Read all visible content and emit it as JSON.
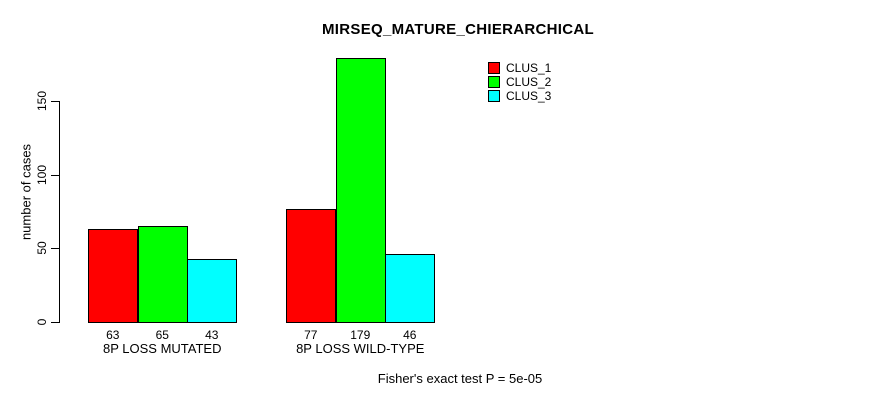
{
  "title": "MIRSEQ_MATURE_CHIERARCHICAL",
  "footer": "Fisher's exact test P = 5e-05",
  "y_axis": {
    "label": "number of cases",
    "ticks": [
      0,
      50,
      100,
      150
    ]
  },
  "legend": {
    "items": [
      {
        "label": "CLUS_1",
        "color": "#ff0000"
      },
      {
        "label": "CLUS_2",
        "color": "#00ff00"
      },
      {
        "label": "CLUS_3",
        "color": "#00ffff"
      }
    ]
  },
  "chart_data": {
    "type": "bar",
    "title": "MIRSEQ_MATURE_CHIERARCHICAL",
    "xlabel": "",
    "ylabel": "number of cases",
    "ylim": [
      0,
      150
    ],
    "axis_ticks": [
      0,
      50,
      100,
      150
    ],
    "categories": [
      "8P LOSS MUTATED",
      "8P LOSS WILD-TYPE"
    ],
    "series": [
      {
        "name": "CLUS_1",
        "color": "#ff0000",
        "values": [
          63,
          77
        ]
      },
      {
        "name": "CLUS_2",
        "color": "#00ff00",
        "values": [
          65,
          179
        ]
      },
      {
        "name": "CLUS_3",
        "color": "#00ffff",
        "values": [
          43,
          46
        ]
      }
    ],
    "bar_value_labels_shown": true,
    "annotation": "Fisher's exact test P = 5e-05",
    "legend_position": "top-right",
    "grid": false
  }
}
